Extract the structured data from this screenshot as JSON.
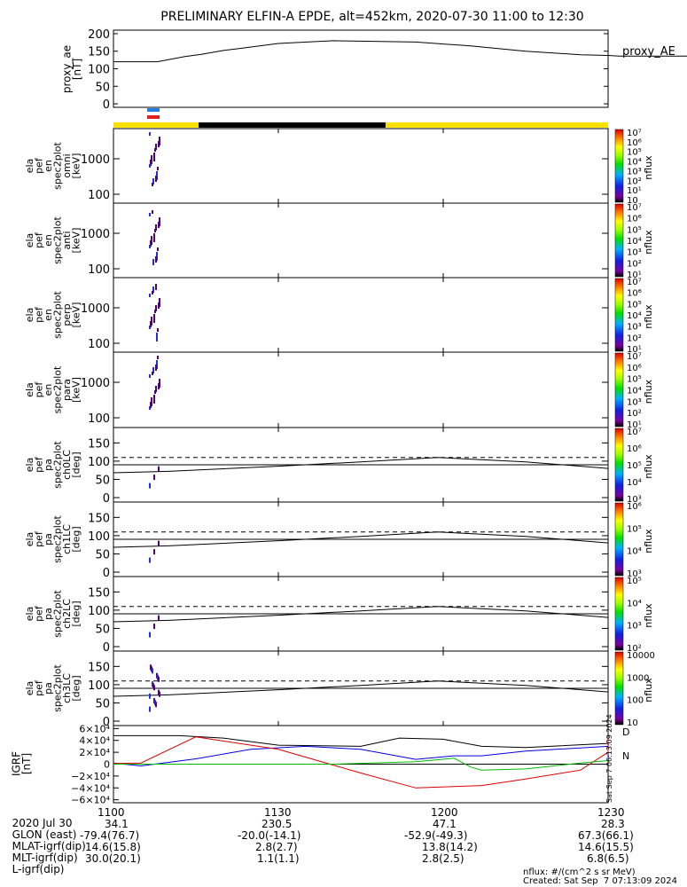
{
  "title": "PRELIMINARY ELFIN-A EPDE, alt=452km, 2020-07-30 11:00 to 12:30",
  "proxy_ae": {
    "ylabel": "proxy_ae\n[nT]",
    "side_label": "proxy_AE",
    "ylim": [
      -10,
      210
    ],
    "yticks": [
      "200",
      "150",
      "100",
      "50",
      "0"
    ],
    "x": [
      0,
      8,
      13,
      16,
      20,
      23,
      30,
      40,
      55,
      65,
      75,
      85,
      90,
      92,
      100,
      105
    ],
    "y": [
      120,
      120,
      135,
      141,
      152,
      158,
      172,
      180,
      176,
      165,
      150,
      140,
      138,
      136,
      136,
      136
    ]
  },
  "spec_panels": [
    {
      "ylabel": "ela\npef\nen\nspec2plot\nomni\n[keV]",
      "yticks": [
        "1000",
        "100"
      ]
    },
    {
      "ylabel": "ela\npef\nen\nspec2plot\nanti\n[keV]",
      "yticks": [
        "1000",
        "100"
      ]
    },
    {
      "ylabel": "ela\npef\nen\nspec2plot\nperp\n[keV]",
      "yticks": [
        "1000",
        "100"
      ]
    },
    {
      "ylabel": "ela\npef\nen\nspec2plot\npara\n[keV]",
      "yticks": [
        "1000",
        "100"
      ]
    }
  ],
  "pa_panels": [
    {
      "ylabel": "ela\npef\npa\nspec2plot\nch0LC\n[deg]",
      "yticks": [
        "150",
        "100",
        "50",
        "0"
      ]
    },
    {
      "ylabel": "ela\npef\npa\nspec2plot\nch1LC\n[deg]",
      "yticks": [
        "150",
        "100",
        "50",
        "0"
      ]
    },
    {
      "ylabel": "ela\npef\npa\nspec2plot\nch2LC\n[deg]",
      "yticks": [
        "150",
        "100",
        "50",
        "0"
      ]
    },
    {
      "ylabel": "ela\npef\npa\nspec2plot\nch3LC\n[deg]",
      "yticks": [
        "150",
        "100",
        "50",
        "0"
      ]
    }
  ],
  "colorbars": [
    {
      "label": "nflux",
      "ticks": [
        "10",
        "10¹",
        "10²",
        "10³",
        "10⁴",
        "10⁵",
        "10⁶",
        "10⁷"
      ]
    },
    {
      "label": "nflux",
      "ticks": [
        "10¹",
        "10²",
        "10³",
        "10⁴",
        "10⁵",
        "10⁶",
        "10⁷"
      ]
    },
    {
      "label": "nflux",
      "ticks": [
        "10¹",
        "10²",
        "10³",
        "10⁴",
        "10⁵",
        "10⁶",
        "10⁷"
      ]
    },
    {
      "label": "nflux",
      "ticks": [
        "10¹",
        "10²",
        "10³",
        "10⁴",
        "10⁵",
        "10⁶",
        "10⁷"
      ]
    },
    {
      "label": "nflux",
      "ticks": [
        "10³",
        "10⁴",
        "10⁵",
        "10⁶",
        "10⁷"
      ]
    },
    {
      "label": "nflux",
      "ticks": [
        "10³",
        "10⁴",
        "10⁵",
        "10⁶"
      ]
    },
    {
      "label": "nflux",
      "ticks": [
        "10²",
        "10³",
        "10⁴",
        "10⁵"
      ]
    },
    {
      "label": "nflux",
      "ticks": [
        "10",
        "100",
        "1000",
        "10000"
      ]
    }
  ],
  "igrf": {
    "ylabel": "IGRF\n[nT]",
    "yticks": [
      "6×10⁴",
      "4×10⁴",
      "2×10⁴",
      "0",
      "−2×10⁴",
      "−4×10⁴",
      "−6×10⁴"
    ],
    "ylim": [
      -65000,
      65000
    ],
    "series": [
      {
        "color": "#000000",
        "x": [
          0,
          12,
          20,
          30,
          45,
          52,
          60,
          67,
          75,
          90,
          105
        ],
        "y": [
          48000,
          48000,
          44000,
          32000,
          30000,
          44000,
          42000,
          30000,
          28000,
          35000,
          46000
        ]
      },
      {
        "color": "#0000dd",
        "x": [
          0,
          5,
          15,
          25,
          35,
          45,
          55,
          62,
          67,
          75,
          90,
          95,
          105
        ],
        "y": [
          2000,
          -3000,
          9000,
          25000,
          30000,
          25000,
          8000,
          14000,
          14000,
          22000,
          30000,
          20000,
          5000
        ]
      },
      {
        "color": "#dd0000",
        "x": [
          0,
          5,
          15,
          30,
          45,
          55,
          67,
          75,
          85,
          95,
          105
        ],
        "y": [
          1000,
          2000,
          46000,
          25000,
          -15000,
          -40000,
          -36000,
          -25000,
          -10000,
          20000,
          45000
        ]
      },
      {
        "color": "#00bb00",
        "x": [
          0,
          20,
          40,
          55,
          62,
          65,
          67,
          75,
          85,
          105
        ],
        "y": [
          0,
          0,
          0,
          4000,
          10000,
          -5000,
          -10000,
          -8000,
          2000,
          6000
        ]
      }
    ],
    "end_markers": [
      "D",
      "N"
    ]
  },
  "bar_colors": {
    "yellow": "#f8e000",
    "black": "#000000",
    "blue": "#2080e0",
    "red": "#e02020"
  },
  "times": [
    "1100",
    "1130",
    "1200",
    "1230"
  ],
  "bottom_rows": [
    {
      "label": "2020 Jul 30",
      "values": [
        "1100",
        "1130",
        "1200",
        "1230"
      ]
    },
    {
      "label": "GLON (east)",
      "values": [
        "34.1",
        "230.5",
        "47.1",
        "28.3"
      ]
    },
    {
      "label": "MLAT-igrf(dip)",
      "values": [
        "-79.4(76.7)",
        "-20.0(-14.1)",
        "-52.9(-49.3)",
        "67.3(66.1)"
      ]
    },
    {
      "label": "MLT-igrf(dip)",
      "values": [
        "14.6(15.8)",
        "2.8(2.7)",
        "13.8(14.2)",
        "14.6(15.5)"
      ]
    },
    {
      "label": "L-igrf(dip)",
      "values": [
        "30.0(20.1)",
        "1.1(1.1)",
        "2.8(2.5)",
        "6.8(6.5)"
      ]
    }
  ],
  "footer": {
    "units": "nflux: #/(cm^2 s sr MeV)",
    "created": "Created: Sat Sep  7 07:13:09 2024",
    "vertical_note": "Sat Sep  7 06:13:09 2024"
  }
}
